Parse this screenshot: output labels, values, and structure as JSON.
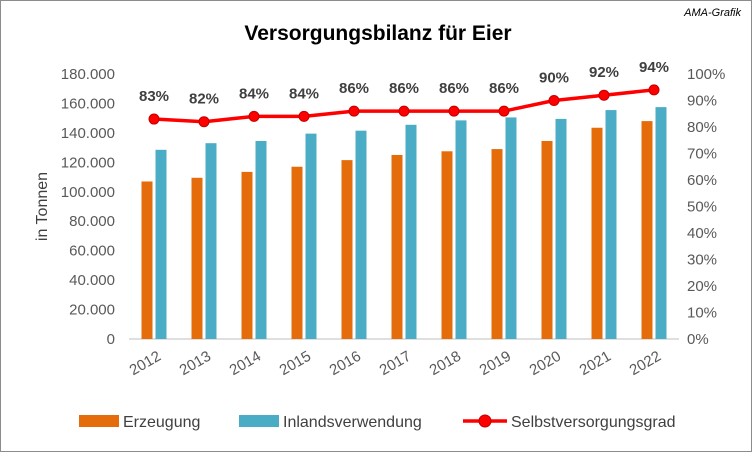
{
  "credit": "AMA-Grafik",
  "chart_data": {
    "type": "bar",
    "title": "Versorgungsbilanz für Eier",
    "ylabel": "in Tonnen",
    "xlabel": "",
    "categories": [
      "2012",
      "2013",
      "2014",
      "2015",
      "2016",
      "2017",
      "2018",
      "2019",
      "2020",
      "2021",
      "2022"
    ],
    "series": [
      {
        "name": "Erzeugung",
        "kind": "bar",
        "axis": "left",
        "color": "#E46C0A",
        "values": [
          107000,
          109500,
          113500,
          117000,
          121500,
          125000,
          127500,
          129000,
          134500,
          143500,
          148000
        ]
      },
      {
        "name": "Inlandsverwendung",
        "kind": "bar",
        "axis": "left",
        "color": "#4BACC6",
        "values": [
          128500,
          133000,
          134500,
          139500,
          141500,
          145500,
          148500,
          150500,
          149500,
          155500,
          157500
        ]
      },
      {
        "name": "Selbstversorgungsgrad",
        "kind": "line",
        "axis": "right",
        "color": "#FF0000",
        "values": [
          83,
          82,
          84,
          84,
          86,
          86,
          86,
          86,
          90,
          92,
          94
        ],
        "labels": [
          "83%",
          "82%",
          "84%",
          "84%",
          "86%",
          "86%",
          "86%",
          "86%",
          "90%",
          "92%",
          "94%"
        ]
      }
    ],
    "ylim": [
      0,
      180000
    ],
    "yticks": [
      0,
      20000,
      40000,
      60000,
      80000,
      100000,
      120000,
      140000,
      160000,
      180000
    ],
    "ytick_labels": [
      "0",
      "20.000",
      "40.000",
      "60.000",
      "80.000",
      "100.000",
      "120.000",
      "140.000",
      "160.000",
      "180.000"
    ],
    "y2lim": [
      0,
      100
    ],
    "y2ticks": [
      0,
      10,
      20,
      30,
      40,
      50,
      60,
      70,
      80,
      90,
      100
    ],
    "y2tick_labels": [
      "0%",
      "10%",
      "20%",
      "30%",
      "40%",
      "50%",
      "60%",
      "70%",
      "80%",
      "90%",
      "100%"
    ],
    "legend_position": "bottom"
  }
}
